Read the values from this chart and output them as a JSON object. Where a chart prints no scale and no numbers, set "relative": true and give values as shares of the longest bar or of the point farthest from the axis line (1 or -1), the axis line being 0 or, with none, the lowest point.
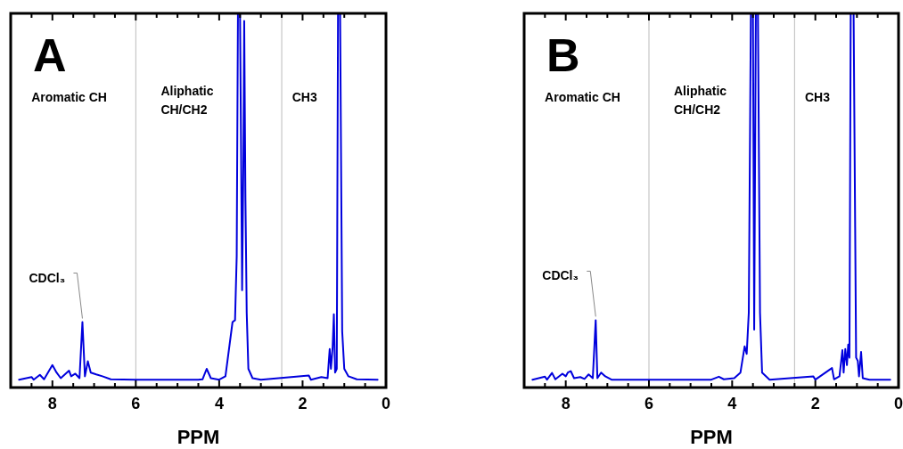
{
  "chart_data": [
    {
      "type": "line",
      "title": "A",
      "xlabel": "PPM",
      "relative": true,
      "xlim": [
        9,
        0
      ],
      "xticks": [
        {
          "value": 9,
          "label": null
        },
        {
          "value": 8.5,
          "label": null
        },
        8,
        {
          "value": 7.5,
          "label": null
        },
        {
          "value": 7,
          "label": null
        },
        {
          "value": 6.5,
          "label": null
        },
        6,
        {
          "value": 5.5,
          "label": null
        },
        {
          "value": 5,
          "label": null
        },
        {
          "value": 4.5,
          "label": null
        },
        4,
        {
          "value": 3.5,
          "label": null
        },
        {
          "value": 3,
          "label": null
        },
        {
          "value": 2.5,
          "label": null
        },
        2,
        {
          "value": 1.5,
          "label": null
        },
        {
          "value": 1,
          "label": null
        },
        {
          "value": 0.5,
          "label": null
        },
        0
      ],
      "tick_labels": "x",
      "grid": false,
      "marker": "none",
      "line_style": "solid",
      "ref_lines": [
        {
          "axis": "x",
          "value": 6,
          "color": "#bbbbbb"
        },
        {
          "axis": "x",
          "value": 2.5,
          "color": "#bbbbbb"
        }
      ],
      "annotations": [
        "Aromatic CH",
        "Aliphatic CH/CH2",
        "CH3",
        {
          "text": "CDCl₃",
          "x": 7.28,
          "y": 0.175
        }
      ],
      "series": [
        {
          "color": "#0000dd",
          "x": [
            8.8,
            8.5,
            8.45,
            8.3,
            8.2,
            8.0,
            7.9,
            7.8,
            7.6,
            7.55,
            7.45,
            7.35,
            7.28,
            7.22,
            7.15,
            7.08,
            6.95,
            6.8,
            6.6,
            6.0,
            4.5,
            4.4,
            4.3,
            4.2,
            4.0,
            3.85,
            3.75,
            3.68,
            3.62,
            3.58,
            3.55,
            3.5,
            3.45,
            3.42,
            3.4,
            3.37,
            3.34,
            3.3,
            3.2,
            3.0,
            1.85,
            1.8,
            1.55,
            1.4,
            1.35,
            1.32,
            1.28,
            1.25,
            1.22,
            1.18,
            1.15,
            1.1,
            1.05,
            1.0,
            0.9,
            0.7,
            0.2
          ],
          "values": [
            0.021,
            0.028,
            0.021,
            0.034,
            0.022,
            0.06,
            0.04,
            0.025,
            0.045,
            0.03,
            0.037,
            0.025,
            0.175,
            0.03,
            0.07,
            0.04,
            0.035,
            0.03,
            0.022,
            0.021,
            0.021,
            0.022,
            0.05,
            0.025,
            0.021,
            0.03,
            0.115,
            0.175,
            0.18,
            0.35,
            1,
            1,
            0.26,
            0.6,
            0.98,
            0.5,
            0.2,
            0.05,
            0.025,
            0.021,
            0.032,
            0.021,
            0.028,
            0.025,
            0.103,
            0.05,
            0.107,
            0.196,
            0.04,
            0.05,
            1,
            1,
            0.15,
            0.05,
            0.03,
            0.022,
            0.021
          ]
        }
      ]
    },
    {
      "type": "line",
      "title": "B",
      "xlabel": "PPM",
      "relative": true,
      "xlim": [
        9,
        0
      ],
      "xticks": [
        {
          "value": 9,
          "label": null
        },
        {
          "value": 8.5,
          "label": null
        },
        8,
        {
          "value": 7.5,
          "label": null
        },
        {
          "value": 7,
          "label": null
        },
        {
          "value": 6.5,
          "label": null
        },
        6,
        {
          "value": 5.5,
          "label": null
        },
        {
          "value": 5,
          "label": null
        },
        {
          "value": 4.5,
          "label": null
        },
        4,
        {
          "value": 3.5,
          "label": null
        },
        {
          "value": 3,
          "label": null
        },
        {
          "value": 2.5,
          "label": null
        },
        2,
        {
          "value": 1.5,
          "label": null
        },
        {
          "value": 1,
          "label": null
        },
        {
          "value": 0.5,
          "label": null
        },
        0
      ],
      "tick_labels": "x",
      "grid": false,
      "marker": "none",
      "line_style": "solid",
      "ref_lines": [
        {
          "axis": "x",
          "value": 6,
          "color": "#bbbbbb"
        },
        {
          "axis": "x",
          "value": 2.5,
          "color": "#bbbbbb"
        }
      ],
      "annotations": [
        "Aromatic CH",
        "Aliphatic CH/CH2",
        "CH3",
        {
          "text": "CDCl₃",
          "x": 7.28,
          "y": 0.18
        }
      ],
      "series": [
        {
          "color": "#0000dd",
          "x": [
            8.8,
            8.5,
            8.45,
            8.33,
            8.25,
            8.08,
            8.0,
            7.95,
            7.88,
            7.8,
            7.65,
            7.55,
            7.45,
            7.35,
            7.28,
            7.24,
            7.15,
            7.05,
            6.9,
            4.5,
            4.32,
            4.2,
            3.95,
            3.8,
            3.7,
            3.65,
            3.6,
            3.55,
            3.5,
            3.47,
            3.43,
            3.38,
            3.33,
            3.28,
            3.1,
            2.05,
            2.0,
            1.6,
            1.55,
            1.42,
            1.35,
            1.32,
            1.28,
            1.24,
            1.21,
            1.18,
            1.15,
            1.08,
            1.02,
            0.98,
            0.95,
            0.9,
            0.86,
            0.7,
            0.2
          ],
          "values": [
            0.021,
            0.029,
            0.021,
            0.039,
            0.022,
            0.037,
            0.03,
            0.04,
            0.044,
            0.025,
            0.028,
            0.023,
            0.035,
            0.025,
            0.18,
            0.025,
            0.04,
            0.03,
            0.021,
            0.021,
            0.029,
            0.022,
            0.025,
            0.04,
            0.11,
            0.09,
            0.2,
            1,
            1,
            0.155,
            1,
            1,
            0.2,
            0.04,
            0.021,
            0.03,
            0.021,
            0.052,
            0.022,
            0.03,
            0.1,
            0.04,
            0.103,
            0.06,
            0.115,
            0.08,
            1,
            1,
            0.08,
            0.071,
            0.03,
            0.095,
            0.025,
            0.021,
            0.021
          ]
        }
      ]
    }
  ]
}
